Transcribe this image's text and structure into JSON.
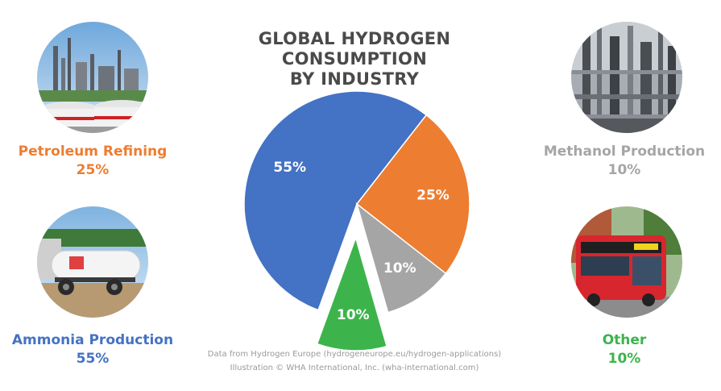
{
  "chart_data": {
    "type": "pie",
    "title_lines": [
      "GLOBAL HYDROGEN CONSUMPTION",
      "BY INDUSTRY"
    ],
    "slices": [
      {
        "label": "Ammonia Production",
        "value": 55,
        "display": "55%",
        "color": "#4472c4",
        "exploded": false
      },
      {
        "label": "Petroleum Refining",
        "value": 25,
        "display": "25%",
        "color": "#ed7d31",
        "exploded": false
      },
      {
        "label": "Methanol Production",
        "value": 10,
        "display": "10%",
        "color": "#a5a5a5",
        "exploded": false
      },
      {
        "label": "Other",
        "value": 10,
        "display": "10%",
        "color": "#3cb44b",
        "exploded": true
      }
    ]
  },
  "categories": {
    "petroleum": {
      "name": "Petroleum Refining",
      "value": "25%",
      "color": "#ed7d31",
      "icon": "refinery-photo"
    },
    "methanol": {
      "name": "Methanol Production",
      "value": "10%",
      "color": "#a5a5a5",
      "icon": "methanol-plant-photo"
    },
    "ammonia": {
      "name": "Ammonia Production",
      "value": "55%",
      "color": "#4472c4",
      "icon": "ammonia-tank-trailer-photo"
    },
    "other": {
      "name": "Other",
      "value": "10%",
      "color": "#3cb44b",
      "icon": "hydrogen-bus-photo"
    }
  },
  "credits": {
    "line1": "Data from Hydrogen Europe (hydrogeneurope.eu/hydrogen-applications)",
    "line2": "Illustration © WHA International, Inc. (wha-international.com)"
  }
}
